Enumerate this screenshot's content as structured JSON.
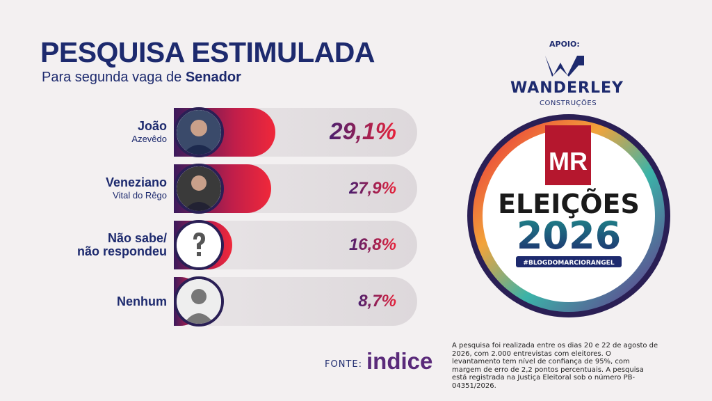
{
  "chart_data": {
    "type": "bar",
    "orientation": "horizontal",
    "title": "PESQUISA ESTIMULADA",
    "subtitle": {
      "text": "Para segunda vaga de",
      "emphasis": "Senador"
    },
    "categories": [
      "João",
      "Veneziano",
      "Não sabe/\nnão respondeu",
      "Nenhum"
    ],
    "subtitles": [
      "Azevêdo",
      "Vital do Rêgo",
      null,
      null
    ],
    "values": [
      29.1,
      27.9,
      16.8,
      8.7
    ],
    "value_labels": [
      "29,1%",
      "27,9%",
      "16,8%",
      "8,7%"
    ]
  },
  "sponsor": {
    "label": "APOIO:",
    "name": "WANDERLEY",
    "tagline": "CONSTRUÇÕES"
  },
  "badge": {
    "logo": "MR",
    "title": "ELEIÇÕES",
    "year": "2026",
    "hashtag": "#BLOGDOMARCIORANGEL"
  },
  "source": {
    "label": "FONTE:",
    "name": "indice",
    "note": "A pesquisa foi realizada entre os dias 20 e 22 de agosto de 2026, com 2.000 entrevistas com eleitores. O levantamento tem nível de confiança de 95%, com margem de erro de 2,2 pontos percentuais. A pesquisa está registrada na Justiça Eleitoral sob o número PB-04351/2026."
  }
}
